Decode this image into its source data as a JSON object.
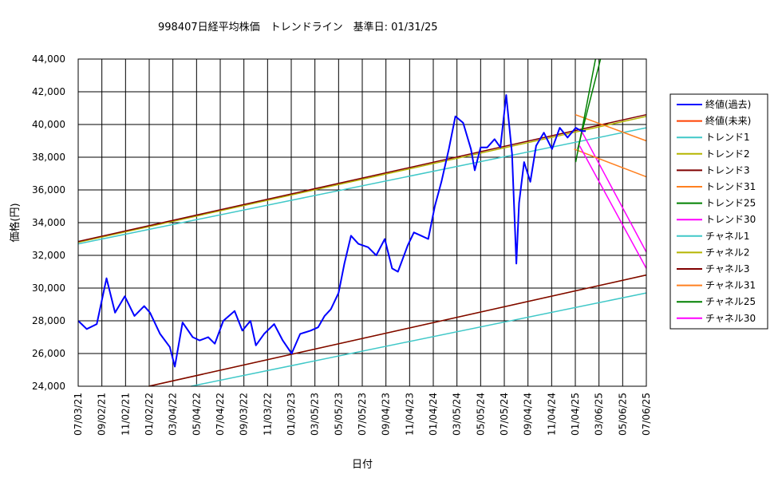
{
  "chart_data": {
    "type": "line",
    "title": "998407日経平均株価　トレンドライン　基準日:  01/31/25",
    "xlabel": "日付",
    "ylabel": "価格(円)",
    "ylim": [
      24000,
      44000
    ],
    "yticks": [
      24000,
      26000,
      28000,
      30000,
      32000,
      34000,
      36000,
      38000,
      40000,
      42000,
      44000
    ],
    "ytick_labels": [
      "24,000",
      "26,000",
      "28,000",
      "30,000",
      "32,000",
      "34,000",
      "36,000",
      "38,000",
      "40,000",
      "42,000",
      "44,000"
    ],
    "xlim": [
      "2021-07-03",
      "2025-07-06"
    ],
    "xtick_labels": [
      "07/03/21",
      "09/02/21",
      "11/02/21",
      "01/02/22",
      "03/04/22",
      "05/04/22",
      "07/04/22",
      "09/03/22",
      "11/03/22",
      "01/03/23",
      "03/05/23",
      "05/05/23",
      "07/05/23",
      "09/04/23",
      "11/04/23",
      "01/04/24",
      "03/05/24",
      "05/05/24",
      "07/05/24",
      "09/04/24",
      "11/04/24",
      "01/04/25",
      "03/06/25",
      "05/06/25",
      "07/06/25"
    ],
    "grid": true,
    "legend_position": "right",
    "series": [
      {
        "name": "終値(過去)",
        "color": "#0000ff",
        "width": 2,
        "x": [
          "2021-07-03",
          "2021-07-25",
          "2021-08-20",
          "2021-09-14",
          "2021-10-06",
          "2021-10-31",
          "2021-11-25",
          "2021-12-20",
          "2022-01-04",
          "2022-01-30",
          "2022-02-24",
          "2022-03-09",
          "2022-03-29",
          "2022-04-24",
          "2022-05-12",
          "2022-06-03",
          "2022-06-20",
          "2022-07-12",
          "2022-08-10",
          "2022-08-30",
          "2022-09-20",
          "2022-10-04",
          "2022-10-25",
          "2022-11-20",
          "2022-12-12",
          "2023-01-04",
          "2023-01-26",
          "2023-02-22",
          "2023-03-13",
          "2023-03-30",
          "2023-04-15",
          "2023-05-05",
          "2023-05-20",
          "2023-06-06",
          "2023-06-25",
          "2023-07-20",
          "2023-08-10",
          "2023-09-01",
          "2023-09-20",
          "2023-10-05",
          "2023-10-30",
          "2023-11-15",
          "2023-12-04",
          "2023-12-22",
          "2024-01-08",
          "2024-01-25",
          "2024-02-13",
          "2024-03-01",
          "2024-03-21",
          "2024-04-10",
          "2024-04-20",
          "2024-05-05",
          "2024-05-22",
          "2024-06-10",
          "2024-06-25",
          "2024-07-10",
          "2024-07-25",
          "2024-08-05",
          "2024-08-12",
          "2024-08-25",
          "2024-09-10",
          "2024-09-25",
          "2024-10-15",
          "2024-11-05",
          "2024-11-25",
          "2024-12-15",
          "2025-01-05",
          "2025-01-20",
          "2025-01-31"
        ],
        "y": [
          28000,
          27500,
          27800,
          30600,
          28500,
          29500,
          28300,
          28900,
          28500,
          27200,
          26400,
          25200,
          27900,
          27000,
          26800,
          27000,
          26600,
          28000,
          28600,
          27400,
          28000,
          26500,
          27200,
          27800,
          26800,
          26000,
          27200,
          27400,
          27600,
          28300,
          28700,
          29700,
          31500,
          33200,
          32700,
          32500,
          32000,
          33000,
          31200,
          31000,
          32600,
          33400,
          33200,
          33000,
          35000,
          36500,
          38500,
          40500,
          40100,
          38500,
          37200,
          38600,
          38600,
          39100,
          38600,
          41800,
          38200,
          31500,
          35200,
          37700,
          36500,
          38700,
          39500,
          38500,
          39800,
          39200,
          39800,
          39600,
          39600
        ]
      },
      {
        "name": "終値(未来)",
        "color": "#ff4000",
        "width": 1.5,
        "x": [],
        "y": []
      },
      {
        "name": "トレンド1",
        "color": "#40c8c8",
        "width": 1.5,
        "x": [
          "2021-07-03",
          "2025-07-06"
        ],
        "y": [
          32700,
          39800
        ]
      },
      {
        "name": "トレンド2",
        "color": "#b5b500",
        "width": 1.5,
        "x": [
          "2021-07-03",
          "2025-07-06"
        ],
        "y": [
          32800,
          40500
        ]
      },
      {
        "name": "トレンド3",
        "color": "#800000",
        "width": 1.5,
        "x": [
          "2021-07-03",
          "2025-07-06"
        ],
        "y": [
          32850,
          40600
        ]
      },
      {
        "name": "トレンド31",
        "color": "#ff8020",
        "width": 1.5,
        "x": [
          "2025-01-04",
          "2025-07-06"
        ],
        "y": [
          40600,
          39000
        ]
      },
      {
        "name": "トレンド25",
        "color": "#008000",
        "width": 1.5,
        "x": [
          "2025-01-10",
          "2025-03-10"
        ],
        "y": [
          38500,
          44000
        ]
      },
      {
        "name": "トレンド30",
        "color": "#ff00ff",
        "width": 1.5,
        "x": [
          "2025-01-20",
          "2025-07-06"
        ],
        "y": [
          39600,
          32200
        ]
      },
      {
        "name": "チャネル1",
        "color": "#40c8c8",
        "width": 1.5,
        "x": [
          "2022-04-20",
          "2025-07-06"
        ],
        "y": [
          24000,
          29700
        ]
      },
      {
        "name": "チャネル2",
        "color": "#b5b500",
        "width": 1.5,
        "x": [
          "2022-01-01",
          "2025-07-06"
        ],
        "y": [
          24000,
          30800
        ]
      },
      {
        "name": "チャネル3",
        "color": "#800000",
        "width": 1.5,
        "x": [
          "2022-01-01",
          "2025-07-06"
        ],
        "y": [
          24000,
          30800
        ]
      },
      {
        "name": "チャネル31",
        "color": "#ff8020",
        "width": 1.5,
        "x": [
          "2025-01-01",
          "2025-07-06"
        ],
        "y": [
          38500,
          36800
        ]
      },
      {
        "name": "チャネル25",
        "color": "#008000",
        "width": 1.5,
        "x": [
          "2025-01-05",
          "2025-02-25"
        ],
        "y": [
          37700,
          44000
        ]
      },
      {
        "name": "チャネル30",
        "color": "#ff00ff",
        "width": 1.5,
        "x": [
          "2025-01-15",
          "2025-07-06"
        ],
        "y": [
          38700,
          31200
        ]
      }
    ]
  }
}
